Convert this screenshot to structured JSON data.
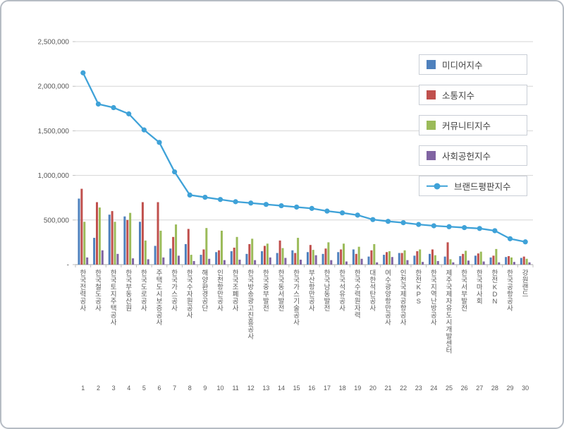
{
  "chart_data": {
    "type": "bar",
    "subtype": "grouped-bars-with-line",
    "title": "",
    "ylim": [
      0,
      2500000
    ],
    "grid": "horizontal",
    "legend_position": "top-right",
    "y_ticks": [
      {
        "value": 2500000,
        "label": "2,500,000"
      },
      {
        "value": 2000000,
        "label": "2,000,000"
      },
      {
        "value": 1500000,
        "label": "1,500,000"
      },
      {
        "value": 1000000,
        "label": "1,000,000"
      },
      {
        "value": 500000,
        "label": "500,000"
      },
      {
        "value": 0,
        "label": "-"
      }
    ],
    "categories": [
      "한국전력공사",
      "한국철도공사",
      "한국토지주택공사",
      "한국부동산원",
      "한국도로공사",
      "주택도시보증공사",
      "한국가스공사",
      "한국수자원공사",
      "해양환경공단",
      "인천항만공사",
      "한국조폐공사",
      "한국방송광고진흥공사",
      "한국중부발전",
      "한국동서발전",
      "한국가스기술공사",
      "부산항만공사",
      "한국남동발전",
      "한국석유공사",
      "한국수력원자력",
      "대한석탄공사",
      "여수광양항만공사",
      "인천국제공항공사",
      "한전KPS",
      "한국지역난방공사",
      "제주국제자유도시개발센터",
      "한국서부발전",
      "한국마사회",
      "한전KDN",
      "한국공항공사",
      "강원랜드"
    ],
    "ranks": [
      "1",
      "2",
      "3",
      "4",
      "5",
      "6",
      "7",
      "8",
      "9",
      "10",
      "11",
      "12",
      "13",
      "14",
      "15",
      "16",
      "17",
      "18",
      "19",
      "20",
      "21",
      "22",
      "23",
      "24",
      "25",
      "26",
      "27",
      "28",
      "29",
      "30"
    ],
    "series": [
      {
        "name": "미디어지수",
        "color": "#4F81BD",
        "values": [
          740000,
          300000,
          560000,
          540000,
          480000,
          210000,
          180000,
          230000,
          110000,
          140000,
          150000,
          120000,
          150000,
          130000,
          160000,
          140000,
          120000,
          140000,
          170000,
          90000,
          110000,
          130000,
          100000,
          120000,
          90000,
          95000,
          100000,
          80000,
          85000,
          75000
        ]
      },
      {
        "name": "소통지수",
        "color": "#C0504D",
        "values": [
          850000,
          700000,
          600000,
          500000,
          700000,
          700000,
          310000,
          400000,
          170000,
          160000,
          190000,
          230000,
          210000,
          270000,
          130000,
          220000,
          180000,
          170000,
          120000,
          160000,
          140000,
          130000,
          150000,
          170000,
          250000,
          120000,
          125000,
          100000,
          95000,
          90000
        ]
      },
      {
        "name": "커뮤니티지수",
        "color": "#9BBB59",
        "values": [
          480000,
          640000,
          480000,
          580000,
          270000,
          380000,
          450000,
          110000,
          410000,
          380000,
          310000,
          290000,
          235000,
          185000,
          300000,
          165000,
          250000,
          235000,
          200000,
          230000,
          150000,
          160000,
          170000,
          105000,
          60000,
          155000,
          145000,
          175000,
          80000,
          65000
        ]
      },
      {
        "name": "사회공헌지수",
        "color": "#8064A2",
        "values": [
          80000,
          160000,
          120000,
          70000,
          60000,
          80000,
          100000,
          40000,
          65000,
          50000,
          55000,
          50000,
          80000,
          75000,
          55000,
          105000,
          50000,
          35000,
          65000,
          25000,
          85000,
          50000,
          30000,
          40000,
          25000,
          45000,
          35000,
          25000,
          30000,
          25000
        ]
      }
    ],
    "line_series": {
      "name": "브랜드평판지수",
      "color": "#3FA2D8",
      "values": [
        2150000,
        1800000,
        1760000,
        1690000,
        1510000,
        1370000,
        1040000,
        780000,
        755000,
        730000,
        705000,
        690000,
        675000,
        660000,
        645000,
        630000,
        600000,
        580000,
        555000,
        505000,
        485000,
        470000,
        450000,
        435000,
        425000,
        415000,
        405000,
        380000,
        290000,
        255000
      ]
    },
    "axis_colors": {
      "gridline": "#d6d6d6",
      "baseline": "#a6a6a6",
      "tick": "#bfbfbf",
      "tick_text": "#595959"
    }
  }
}
